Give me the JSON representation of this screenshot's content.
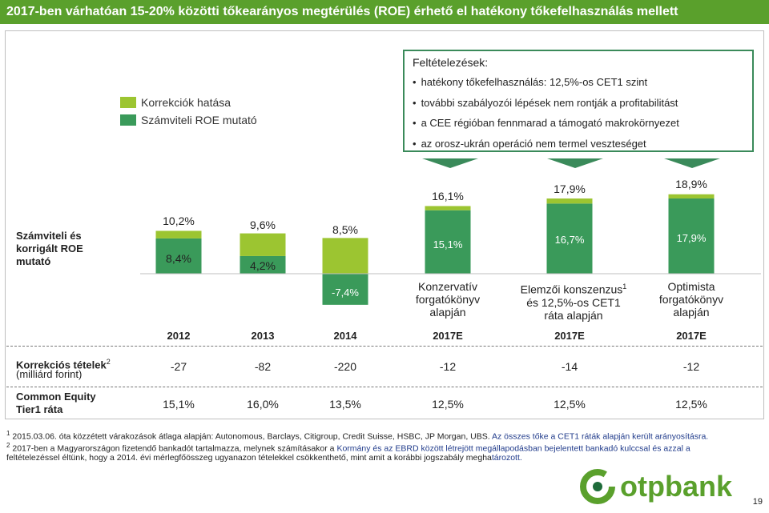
{
  "header": {
    "title": "2017-ben várhatóan 15-20% közötti tőkearányos megtérülés (ROE) érhető el hatékony tőkefelhasználás mellett"
  },
  "legend": {
    "items": [
      {
        "label": "Korrekciók hatása",
        "color": "#9cc531"
      },
      {
        "label": "Számviteli ROE mutató",
        "color": "#3a9a5a"
      }
    ]
  },
  "assumptions": {
    "title": "Feltételezések:",
    "items": [
      "hatékony tőkefelhasználás: 12,5%-os CET1 szint",
      "további szabályozói lépések nem rontják a profitabilitást",
      "a CEE régióban fennmarad a támogató makrokörnyezet",
      "az orosz-ukrán operáció nem termel veszteséget"
    ]
  },
  "row_labels": {
    "roe": "Számviteli és korrigált ROE mutató",
    "corrections": "Korrekciós tételek",
    "corrections_sup": "2",
    "corrections_unit": "(milliárd forint)",
    "cet1": "Common Equity Tier1 ráta"
  },
  "scenarios": [
    {
      "line1": "Konzervatív",
      "line2": "forgatókönyv",
      "line3": "alapján",
      "sup": ""
    },
    {
      "line1": "Elemzői konszenzus",
      "line2": "és 12,5%-os CET1",
      "line3": "ráta alapján",
      "sup": "1"
    },
    {
      "line1": "Optimista",
      "line2": "forgatókönyv",
      "line3": "alapján",
      "sup": ""
    }
  ],
  "chart_data": {
    "type": "bar",
    "categories": [
      "2012",
      "2013",
      "2014",
      "2017E",
      "2017E",
      "2017E"
    ],
    "series": [
      {
        "name": "Számviteli ROE mutató",
        "color": "#3a9a5a",
        "values": [
          8.4,
          4.2,
          -7.4,
          15.1,
          16.7,
          17.9
        ],
        "labels": [
          "8,4%",
          "4,2%",
          "-7,4%",
          "15,1%",
          "16,7%",
          "17,9%"
        ]
      },
      {
        "name": "Korrekciók hatása",
        "color": "#9cc531",
        "values": [
          1.8,
          5.4,
          15.9,
          1.0,
          1.2,
          1.0
        ]
      }
    ],
    "totals": [
      10.2,
      9.6,
      8.5,
      16.1,
      17.9,
      18.9
    ],
    "total_labels": [
      "10,2%",
      "9,6%",
      "8,5%",
      "16,1%",
      "17,9%",
      "18,9%"
    ],
    "corrections": [
      "-27",
      "-82",
      "-220",
      "-12",
      "-14",
      "-12"
    ],
    "cet1": [
      "15,1%",
      "16,0%",
      "13,5%",
      "12,5%",
      "12,5%",
      "12,5%"
    ]
  },
  "footnotes": {
    "f1_num": "1",
    "f1_text": "2015.03.06. óta közzétett várakozások átlaga alapján: Autonomous, Barclays, Citigroup, Credit Suisse, HSBC, JP Morgan, UBS.",
    "f1_highlight": "Az összes tőke a CET1 ráták alapján került arányosításra.",
    "f2_num": "2",
    "f2_text_a": "2017-ben a Magyarországon fizetendő bankadót tartalmazza, melynek számításakor a",
    "f2_highlight": "Kormány és az EBRD között létrejött megállapodásban bejelentett bankadó kulccsal és azzal a",
    "f2_text_b": "feltételezéssel éltünk, hogy a 2014. évi mérlegfőösszeg ugyanazon tételekkel csökkenthető, mint amit a korábbi jogszabály",
    "f2_text_c": "megha",
    "f2_highlight2": "tározott."
  },
  "brand": {
    "name": "otpbank",
    "color": "#5aa02c",
    "accent": "#1e6b3a"
  },
  "page_number": "19"
}
